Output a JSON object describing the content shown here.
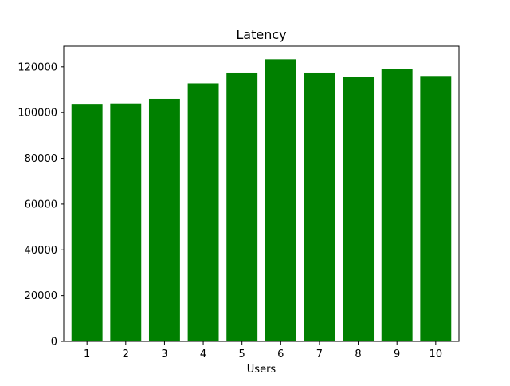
{
  "chart_data": {
    "type": "bar",
    "title": "Latency",
    "xlabel": "Users",
    "ylabel": "",
    "categories": [
      "1",
      "2",
      "3",
      "4",
      "5",
      "6",
      "7",
      "8",
      "9",
      "10"
    ],
    "values": [
      103500,
      104000,
      106000,
      112800,
      117500,
      123300,
      117500,
      115600,
      119000,
      116000
    ],
    "ylim": [
      0,
      129000
    ],
    "yticks": [
      0,
      20000,
      40000,
      60000,
      80000,
      100000,
      120000
    ],
    "ytick_labels": [
      "0",
      "20000",
      "40000",
      "60000",
      "80000",
      "100000",
      "120000"
    ],
    "bar_color": "#008000",
    "grid": false,
    "legend": "none"
  }
}
